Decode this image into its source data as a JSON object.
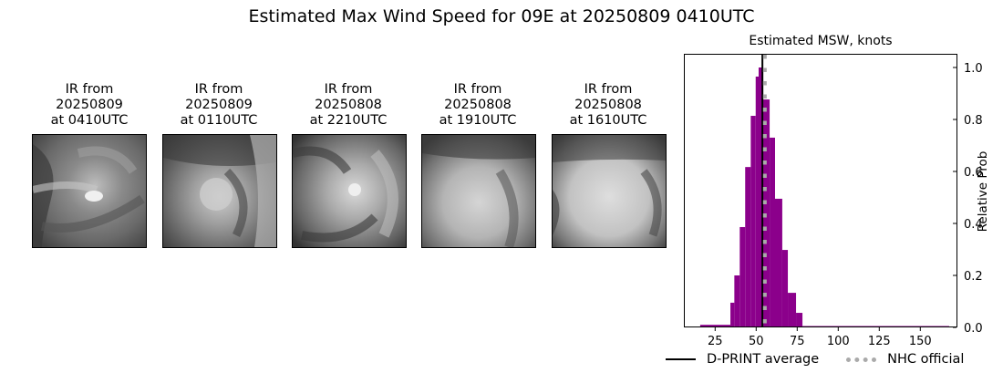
{
  "figure": {
    "title": "Estimated Max Wind Speed for 09E at 20250809 0410UTC"
  },
  "panels": [
    {
      "line1": "IR from",
      "line2": "20250809",
      "line3": "at 0410UTC"
    },
    {
      "line1": "IR from",
      "line2": "20250809",
      "line3": "at 0110UTC"
    },
    {
      "line1": "IR from",
      "line2": "20250808",
      "line3": "at 2210UTC"
    },
    {
      "line1": "IR from",
      "line2": "20250808",
      "line3": "at 1910UTC"
    },
    {
      "line1": "IR from",
      "line2": "20250808",
      "line3": "at 1610UTC"
    }
  ],
  "chart": {
    "title": "Estimated MSW, knots",
    "ylabel": "Relative Prob",
    "xticks": [
      "25",
      "50",
      "75",
      "100",
      "125",
      "150"
    ],
    "yticks": [
      "0.0",
      "0.2",
      "0.4",
      "0.6",
      "0.8",
      "1.0"
    ],
    "legend": {
      "dprint": "D-PRINT average",
      "nhc": "NHC official"
    },
    "colors": {
      "bars": "#8b008b",
      "dprint_line": "#000000",
      "nhc_line": "#aaaaaa"
    }
  },
  "chart_data": {
    "type": "bar",
    "title": "Estimated MSW, knots",
    "xlabel": "",
    "ylabel": "Relative Prob",
    "xlim": [
      5,
      175
    ],
    "ylim": [
      0,
      1.05
    ],
    "xticks": [
      25,
      50,
      75,
      100,
      125,
      150
    ],
    "yticks": [
      0.0,
      0.2,
      0.4,
      0.6,
      0.8,
      1.0
    ],
    "grid": false,
    "legend_position": "below",
    "bin_edges": [
      15.9,
      34.3,
      36.7,
      40.0,
      43.3,
      46.7,
      49.7,
      51.5,
      54.3,
      58.2,
      61.5,
      65.9,
      69.3,
      74.3,
      78.2,
      167.6
    ],
    "values": [
      0.01,
      0.095,
      0.2,
      0.386,
      0.617,
      0.814,
      0.965,
      1.0,
      0.877,
      0.73,
      0.495,
      0.298,
      0.133,
      0.056,
      0.004
    ],
    "vlines": [
      {
        "name": "D-PRINT average",
        "x": 53.8,
        "style": "solid",
        "color": "#000000"
      },
      {
        "name": "NHC official",
        "x": 55.3,
        "style": "dotted",
        "color": "#aaaaaa"
      }
    ]
  }
}
